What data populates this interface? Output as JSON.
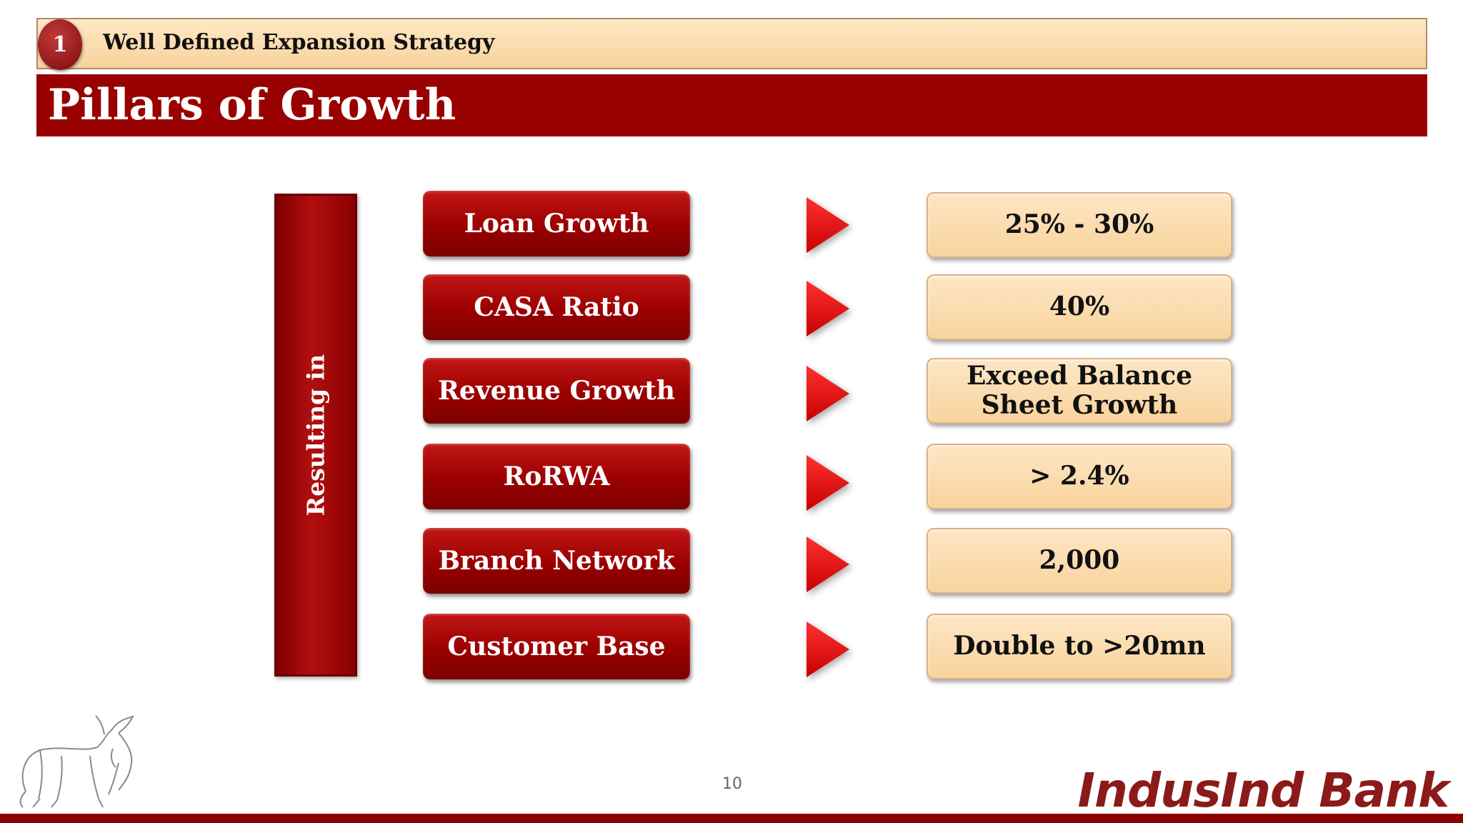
{
  "section": {
    "number": "1",
    "title": "Well Defined Expansion Strategy"
  },
  "page_title": "Pillars of Growth",
  "side_label": "Resulting in",
  "pillars": [
    {
      "label": "Loan Growth",
      "target": "25% - 30%"
    },
    {
      "label": "CASA Ratio",
      "target": "40%"
    },
    {
      "label": "Revenue Growth",
      "target": "Exceed Balance Sheet Growth"
    },
    {
      "label": "RoRWA",
      "target": "> 2.4%"
    },
    {
      "label": "Branch Network",
      "target": "2,000"
    },
    {
      "label": "Customer Base",
      "target": "Double to >20mn"
    }
  ],
  "icons": {
    "arrow": "play-arrow-icon",
    "bull": "bull-logo-icon"
  },
  "colors": {
    "primary_red": "#990000",
    "arrow_red": "#e01010",
    "cream": "#fbdca8",
    "logo_red": "#8b1a1a"
  },
  "footer": {
    "page_number": "10",
    "brand": "IndusInd Bank"
  }
}
